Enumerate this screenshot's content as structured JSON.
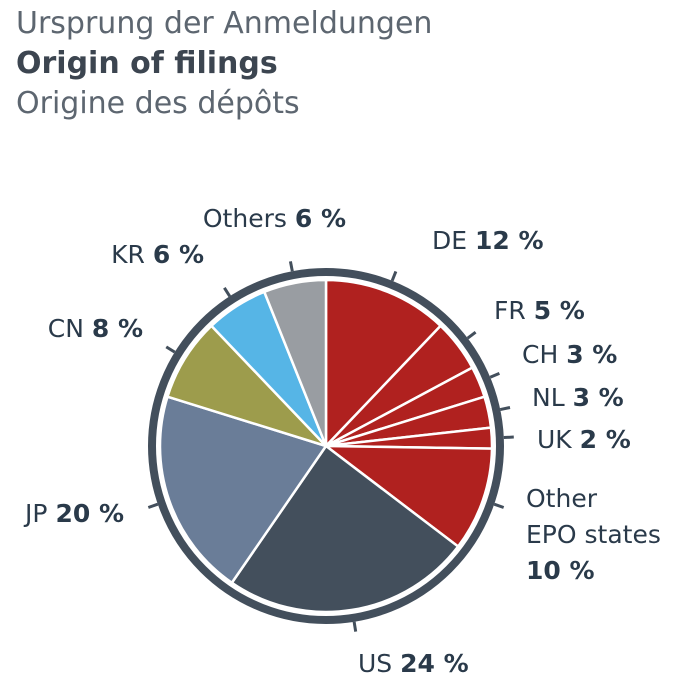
{
  "title_de": "Ursprung der Anmeldungen",
  "title_en": "Origin of filings",
  "title_fr": "Origine des dépôts",
  "chart_data": {
    "type": "pie",
    "slices": [
      {
        "label": "DE",
        "display": "12 %",
        "value": 12,
        "color": "#b0211f"
      },
      {
        "label": "FR",
        "display": "5 %",
        "value": 5,
        "color": "#b0211f"
      },
      {
        "label": "CH",
        "display": "3 %",
        "value": 3,
        "color": "#b0211f"
      },
      {
        "label": "NL",
        "display": "3 %",
        "value": 3,
        "color": "#b0211f"
      },
      {
        "label": "UK",
        "display": "2 %",
        "value": 2,
        "color": "#b0211f"
      },
      {
        "label": "Other EPO states",
        "display": "10 %",
        "value": 10,
        "color": "#b0211f"
      },
      {
        "label": "US",
        "display": "24 %",
        "value": 24,
        "color": "#434f5c"
      },
      {
        "label": "JP",
        "display": "20 %",
        "value": 20,
        "color": "#6a7d98"
      },
      {
        "label": "CN",
        "display": "8 %",
        "value": 8,
        "color": "#9d9c4c"
      },
      {
        "label": "KR",
        "display": "6 %",
        "value": 6,
        "color": "#56b5e6"
      },
      {
        "label": "Others",
        "display": "6 %",
        "value": 6,
        "color": "#999da2"
      }
    ]
  }
}
